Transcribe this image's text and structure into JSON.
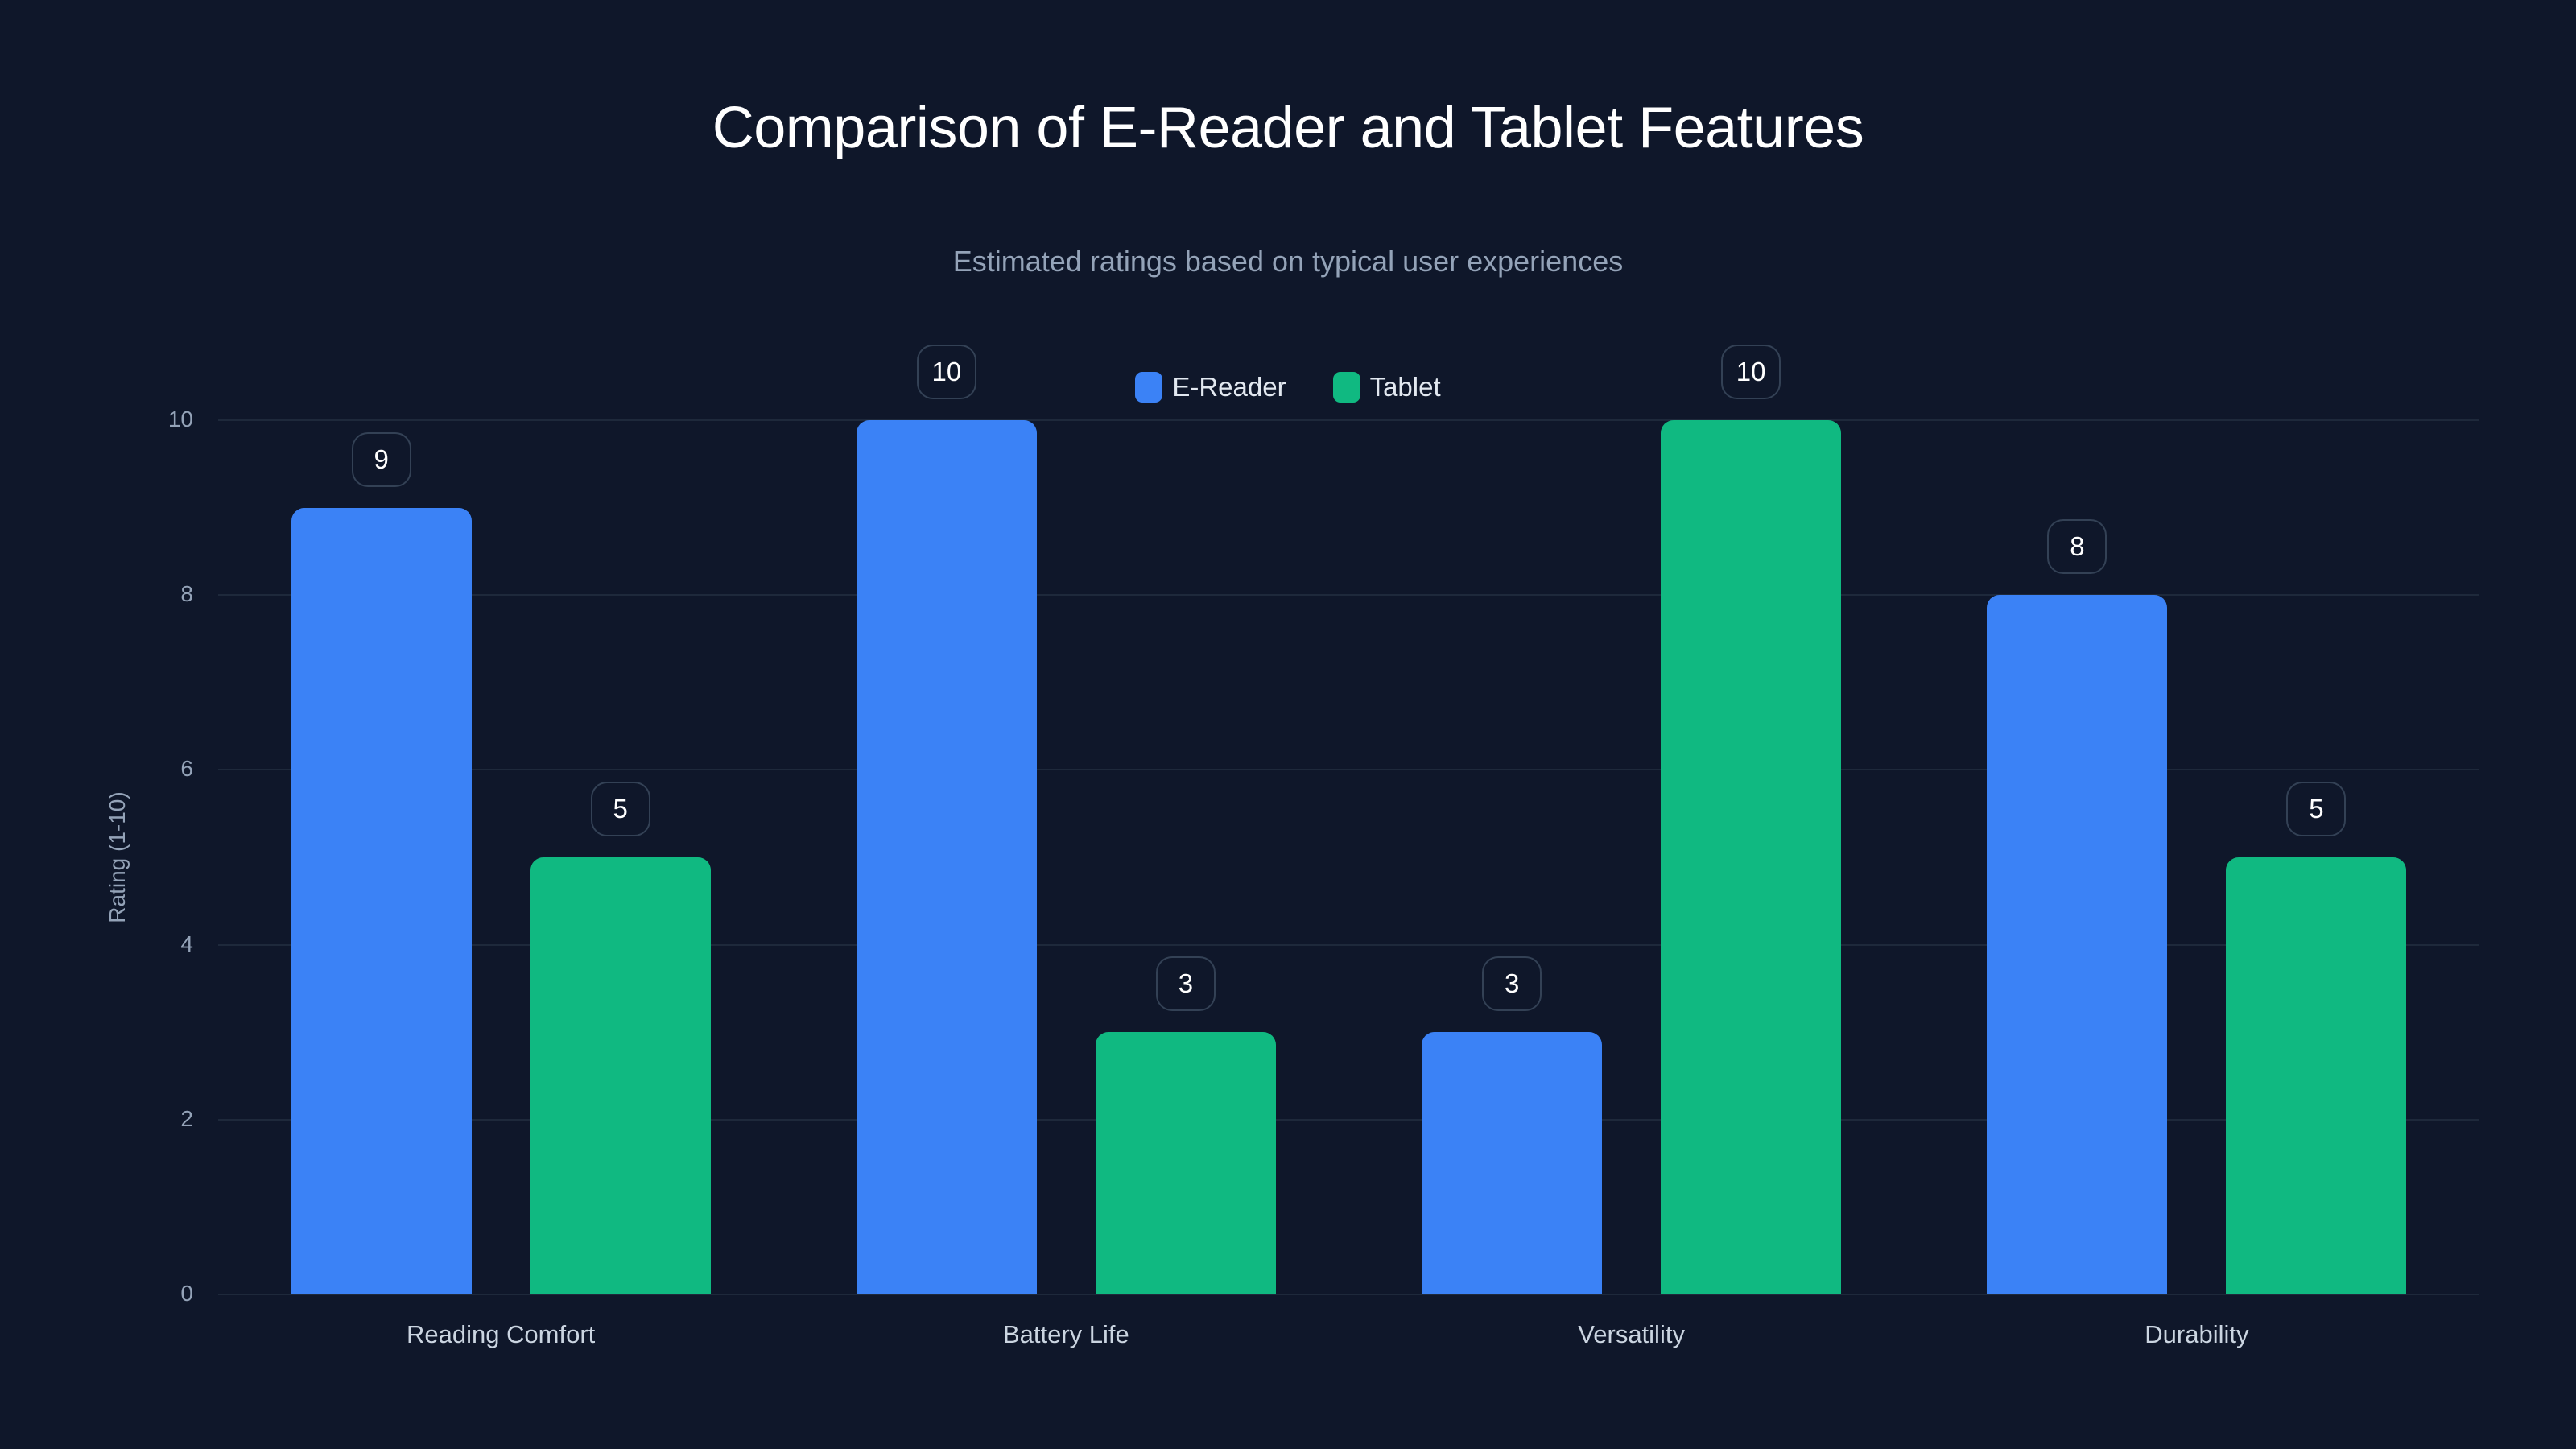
{
  "header": {
    "title": "Comparison of E-Reader and Tablet Features",
    "subtitle": "Estimated ratings based on typical user experiences"
  },
  "legend": [
    {
      "label": "E-Reader",
      "color": "#3b82f6"
    },
    {
      "label": "Tablet",
      "color": "#10b981"
    }
  ],
  "axes": {
    "ylabel": "Rating (1-10)",
    "yticks": [
      "0",
      "2",
      "4",
      "6",
      "8",
      "10"
    ]
  },
  "chart_data": {
    "type": "bar",
    "title": "Comparison of E-Reader and Tablet Features",
    "subtitle": "Estimated ratings based on typical user experiences",
    "categories": [
      "Reading Comfort",
      "Battery Life",
      "Versatility",
      "Durability"
    ],
    "series": [
      {
        "name": "E-Reader",
        "color": "#3b82f6",
        "values": [
          9,
          10,
          3,
          8
        ]
      },
      {
        "name": "Tablet",
        "color": "#10b981",
        "values": [
          5,
          3,
          10,
          5
        ]
      }
    ],
    "xlabel": "",
    "ylabel": "Rating (1-10)",
    "ylim": [
      0,
      10
    ],
    "yticks": [
      0,
      2,
      4,
      6,
      8,
      10
    ],
    "grid": true,
    "legend_position": "top-center",
    "data_labels": true
  }
}
